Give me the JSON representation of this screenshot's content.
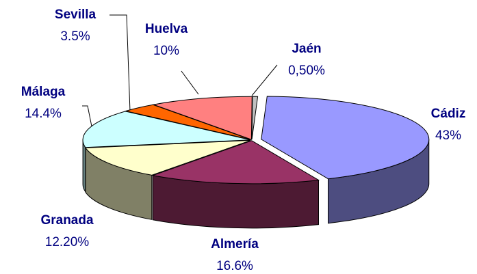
{
  "chart_data": {
    "type": "pie3d",
    "categories": [
      "Cádiz",
      "Almería",
      "Granada",
      "Málaga",
      "Sevilla",
      "Huelva",
      "Jaén"
    ],
    "values": [
      43,
      16.6,
      12.2,
      14.4,
      3.5,
      10,
      0.5
    ],
    "value_labels": [
      "43%",
      "16.6%",
      "12.20%",
      "14.4%",
      "3.5%",
      "10%",
      "0,50%"
    ],
    "colors": [
      "#9999ff",
      "#993366",
      "#ffffcc",
      "#ccffff",
      "#ff6600",
      "#ff8080",
      "#c0c0c0"
    ],
    "exploded": [
      "Cádiz"
    ]
  }
}
